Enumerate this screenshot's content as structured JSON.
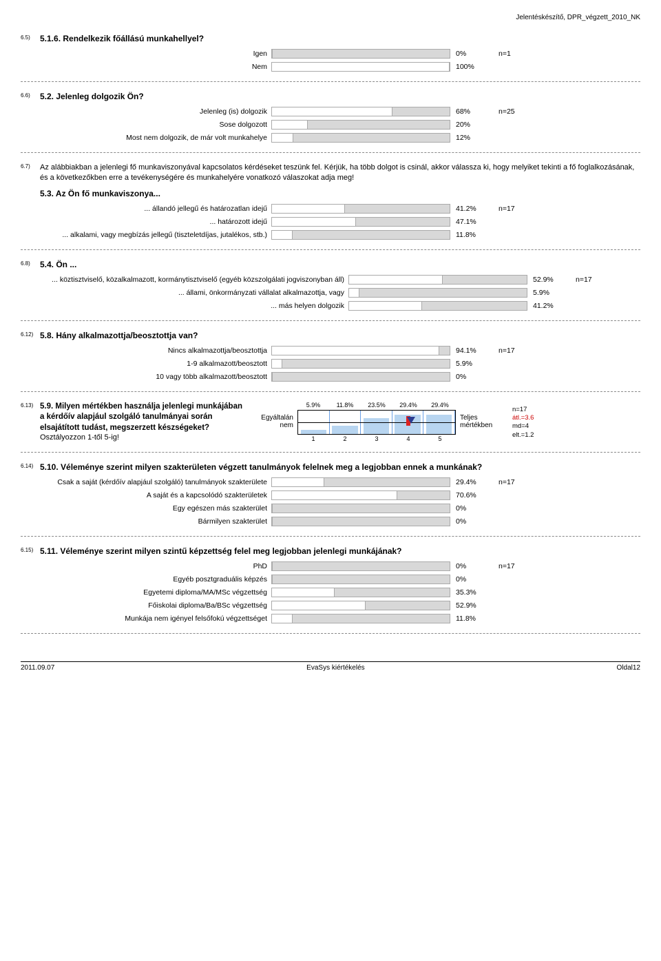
{
  "header": {
    "doc": "Jelentéskészítő, DPR_végzett_2010_NK"
  },
  "footer": {
    "date": "2011.09.07",
    "system": "EvaSys kiértékelés",
    "page": "Oldal12"
  },
  "barTrackWidth": 260,
  "q65": {
    "num": "6.5)",
    "title": "5.1.6. Rendelkezik főállású munkahellyel?",
    "labelWidth": 364,
    "rows": [
      {
        "label": "Igen",
        "pct": 0,
        "pctTxt": "0%",
        "n": "n=1"
      },
      {
        "label": "Nem",
        "pct": 100,
        "pctTxt": "100%",
        "n": ""
      }
    ]
  },
  "q66": {
    "num": "6.6)",
    "title": "5.2. Jelenleg dolgozik Ön?",
    "labelWidth": 364,
    "rows": [
      {
        "label": "Jelenleg (is) dolgozik",
        "pct": 68,
        "pctTxt": "68%",
        "n": "n=25"
      },
      {
        "label": "Sose dolgozott",
        "pct": 20,
        "pctTxt": "20%",
        "n": ""
      },
      {
        "label": "Most nem dolgozik, de már volt munkahelye",
        "pct": 12,
        "pctTxt": "12%",
        "n": ""
      }
    ]
  },
  "q67": {
    "num": "6.7)",
    "text": "Az alábbiakban a jelenlegi fő munkaviszonyával kapcsolatos kérdéseket teszünk fel. Kérjük, ha több dolgot is csinál, akkor válassza ki, hogy melyiket tekinti a fő foglalkozásának, és a következőkben erre a tevékenységére és munkahelyére vonatkozó válaszokat adja meg!",
    "title": "5.3. Az Ön fő munkaviszonya...",
    "labelWidth": 364,
    "rows": [
      {
        "label": "... állandó jellegű és határozatlan idejű",
        "pct": 41.2,
        "pctTxt": "41.2%",
        "n": "n=17"
      },
      {
        "label": "... határozott idejű",
        "pct": 47.1,
        "pctTxt": "47.1%",
        "n": ""
      },
      {
        "label": "... alkalami, vagy megbízás jellegű (tiszteletdíjas, jutalékos, stb.)",
        "pct": 11.8,
        "pctTxt": "11.8%",
        "n": ""
      }
    ]
  },
  "q68": {
    "num": "6.8)",
    "title": "5.4. Ön ...",
    "labelWidth": 476,
    "rows": [
      {
        "label": "... köztisztviselő, közalkalmazott, kormánytisztviselő (egyéb közszolgálati jogviszonyban áll)",
        "pct": 52.9,
        "pctTxt": "52.9%",
        "n": "n=17"
      },
      {
        "label": "... állami, önkormányzati vállalat alkalmazottja, vagy",
        "pct": 5.9,
        "pctTxt": "5.9%",
        "n": ""
      },
      {
        "label": "... más helyen dolgozik",
        "pct": 41.2,
        "pctTxt": "41.2%",
        "n": ""
      }
    ]
  },
  "q612": {
    "num": "6.12)",
    "title": "5.8. Hány alkalmazottja/beosztottja van?",
    "labelWidth": 364,
    "rows": [
      {
        "label": "Nincs alkalmazottja/beosztottja",
        "pct": 94.1,
        "pctTxt": "94.1%",
        "n": "n=17"
      },
      {
        "label": "1-9 alkalmazott/beosztott",
        "pct": 5.9,
        "pctTxt": "5.9%",
        "n": ""
      },
      {
        "label": "10 vagy több alkalmazott/beosztott",
        "pct": 0,
        "pctTxt": "0%",
        "n": ""
      }
    ]
  },
  "q613": {
    "num": "6.13)",
    "title": "5.9. Milyen mértékben használja jelenlegi munkájában a kérdőív alapjául szolgáló tanulmányai során elsajátított tudást, megszerzett készségeket?",
    "sub": " Osztályozzon 1-től 5-ig!",
    "endLeft": "Egyáltalán nem",
    "endRight": "Teljes mértékben",
    "pcts": [
      "5.9%",
      "11.8%",
      "23.5%",
      "29.4%",
      "29.4%"
    ],
    "bars": [
      5.9,
      11.8,
      23.5,
      29.4,
      29.4
    ],
    "nums": [
      "1",
      "2",
      "3",
      "4",
      "5"
    ],
    "meanPos": 72,
    "medianPos": 70,
    "stats": {
      "n": "n=17",
      "atl": "átl.=3.6",
      "md": "md=4",
      "elt": "elt.=1.2"
    }
  },
  "q614": {
    "num": "6.14)",
    "title": "5.10. Véleménye szerint milyen szakterületen végzett tanulmányok felelnek meg a legjobban ennek a munkának?",
    "labelWidth": 364,
    "rows": [
      {
        "label": "Csak a saját (kérdőív alapjául szolgáló) tanulmányok szakterülete",
        "pct": 29.4,
        "pctTxt": "29.4%",
        "n": "n=17"
      },
      {
        "label": "A saját és a kapcsolódó szakterületek",
        "pct": 70.6,
        "pctTxt": "70.6%",
        "n": ""
      },
      {
        "label": "Egy egészen más szakterület",
        "pct": 0,
        "pctTxt": "0%",
        "n": ""
      },
      {
        "label": "Bármilyen szakterület",
        "pct": 0,
        "pctTxt": "0%",
        "n": ""
      }
    ]
  },
  "q615": {
    "num": "6.15)",
    "title": "5.11. Véleménye szerint milyen szintű képzettség felel meg legjobban jelenlegi munkájának?",
    "labelWidth": 364,
    "rows": [
      {
        "label": "PhD",
        "pct": 0,
        "pctTxt": "0%",
        "n": "n=17"
      },
      {
        "label": "Egyéb posztgraduális képzés",
        "pct": 0,
        "pctTxt": "0%",
        "n": ""
      },
      {
        "label": "Egyetemi diploma/MA/MSc végzettség",
        "pct": 35.3,
        "pctTxt": "35.3%",
        "n": ""
      },
      {
        "label": "Főiskolai diploma/Ba/BSc végzettség",
        "pct": 52.9,
        "pctTxt": "52.9%",
        "n": ""
      },
      {
        "label": "Munkája nem igényel felsőfokú végzettséget",
        "pct": 11.8,
        "pctTxt": "11.8%",
        "n": ""
      }
    ]
  }
}
